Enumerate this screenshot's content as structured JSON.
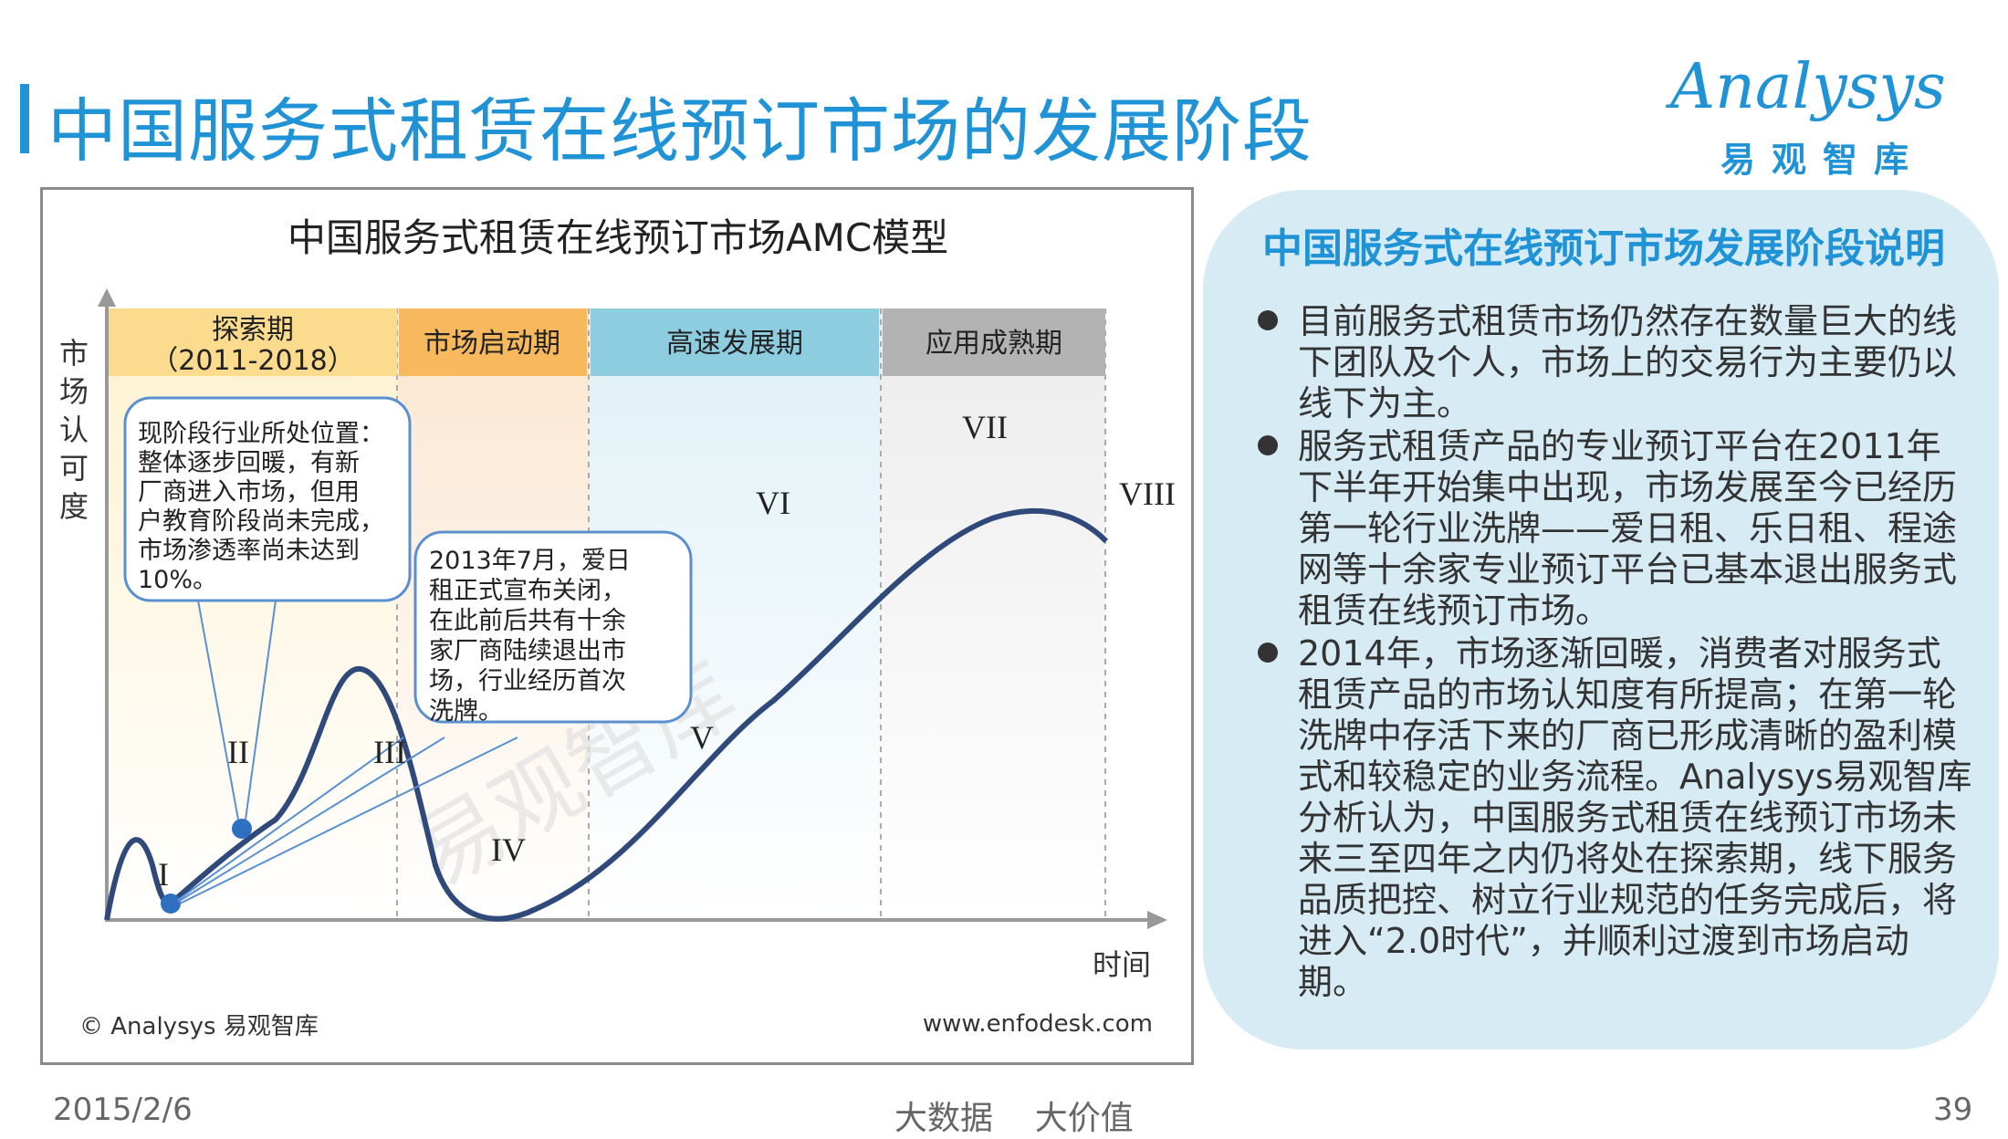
{
  "header": {
    "title": "中国服务式租赁在线预订市场的发展阶段",
    "logo_en": "Analysys",
    "logo_cn": "易观智库"
  },
  "diagram": {
    "title": "中国服务式租赁在线预订市场AMC模型",
    "y_axis_label": [
      "市",
      "场",
      "认",
      "可",
      "度"
    ],
    "x_axis_label": "时间",
    "phases": [
      {
        "name": "探索期",
        "sub": "（2011-2018）",
        "color": "#fbdc8e"
      },
      {
        "name": "市场启动期",
        "sub": "",
        "color": "#f7b85e"
      },
      {
        "name": "高速发展期",
        "sub": "",
        "color": "#8ecde0"
      },
      {
        "name": "应用成熟期",
        "sub": "",
        "color": "#b3b3b3"
      }
    ],
    "stage_labels": [
      "I",
      "II",
      "III",
      "IV",
      "V",
      "VI",
      "VII",
      "VIII"
    ],
    "callout1": [
      "现阶段行业所处位置：",
      "整体逐步回暖，有新",
      "厂商进入市场，但用",
      "户教育阶段尚未完成，",
      "市场渗透率尚未达到",
      "10%。"
    ],
    "callout2": [
      "2013年7月，爱日",
      "租正式宣布关闭，",
      "在此前后共有十余",
      "家厂商陆续退出市",
      "场，行业经历首次",
      "洗牌。"
    ],
    "watermark": "易观智库",
    "copyright": "© Analysys 易观智库",
    "website": "www.enfodesk.com",
    "colors": {
      "curve": "#2f4a7a",
      "callout_border": "#5a8fd0",
      "pointer": "#5a8fd0"
    }
  },
  "panel": {
    "title": "中国服务式在线预订市场发展阶段说明",
    "bullets": [
      "目前服务式租赁市场仍然存在数量巨大的线下团队及个人，市场上的交易行为主要仍以线下为主。",
      "服务式租赁产品的专业预订平台在2011年下半年开始集中出现，市场发展至今已经历第一轮行业洗牌——爱日租、乐日租、程途网等十余家专业预订平台已基本退出服务式租赁在线预订市场。",
      "2014年，市场逐渐回暖，消费者对服务式租赁产品的市场认知度有所提高；在第一轮洗牌中存活下来的厂商已形成清晰的盈利模式和较稳定的业务流程。Analysys易观智库分析认为，中国服务式租赁在线预订市场未来三至四年之内仍将处在探索期，线下服务品质把控、树立行业规范的任务完成后，将进入“2.0时代”，并顺利过渡到市场启动期。"
    ]
  },
  "footer": {
    "date": "2015/2/6",
    "center": "大数据    大价值",
    "page": "39"
  }
}
